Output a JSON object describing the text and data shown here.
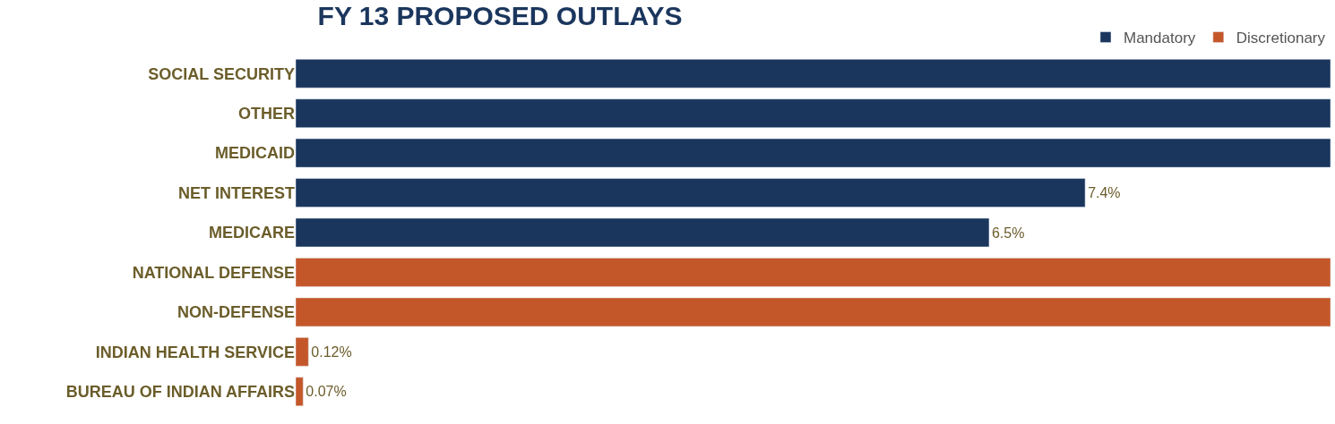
{
  "chart_data": {
    "type": "bar",
    "orientation": "horizontal",
    "title": "FY 13 PROPOSED OUTLAYS",
    "categories": [
      "SOCIAL SECURITY",
      "OTHER",
      "MEDICAID",
      "NET INTEREST",
      "MEDICARE",
      "NATIONAL DEFENSE",
      "NON-DEFENSE",
      "INDIAN HEALTH SERVICE",
      "BUREAU OF INDIAN AFFAIRS"
    ],
    "series": [
      {
        "name": "Mandatory",
        "color": "#1b365d",
        "values": [
          9.7,
          9.7,
          9.7,
          7.4,
          6.5,
          null,
          null,
          null,
          null
        ],
        "value_labels": [
          null,
          null,
          null,
          "7.4%",
          "6.5%",
          null,
          null,
          null,
          null
        ]
      },
      {
        "name": "Discretionary",
        "color": "#c4572a",
        "values": [
          null,
          null,
          null,
          null,
          null,
          9.7,
          9.7,
          0.12,
          0.07
        ],
        "value_labels": [
          null,
          null,
          null,
          null,
          null,
          null,
          null,
          "0.12%",
          "0.07%"
        ]
      }
    ],
    "xlim": [
      0,
      9.7
    ],
    "tick_labels": "y",
    "legend": "top right"
  }
}
